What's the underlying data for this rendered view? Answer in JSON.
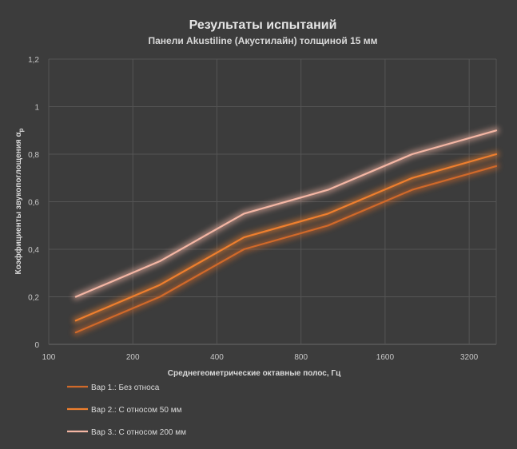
{
  "chart_data": {
    "type": "line",
    "title": "Результаты испытаний",
    "subtitle": "Панели Akustiline (Акустилайн) толщиной 15 мм",
    "xlabel": "Среднегеометрические октавные полос, Гц",
    "ylabel": "Коэффициенты звукопоглощения α",
    "ylabel_sub": "р",
    "x_scale": "log2",
    "x_ticks": [
      100,
      200,
      400,
      800,
      1600,
      3200
    ],
    "xlim": [
      100,
      4000
    ],
    "ylim": [
      0,
      1.2
    ],
    "y_ticks": [
      "0",
      "0,2",
      "0,4",
      "0,6",
      "0,8",
      "1",
      "1,2"
    ],
    "grid": true,
    "legend_position": "bottom-left",
    "x": [
      125,
      250,
      500,
      1000,
      2000,
      4000
    ],
    "series": [
      {
        "name": "Вар 1.: Без относа",
        "color": "#d0692a",
        "values": [
          0.05,
          0.2,
          0.4,
          0.5,
          0.65,
          0.75
        ]
      },
      {
        "name": "Вар 2.: С относом 50 мм",
        "color": "#ee7f2e",
        "values": [
          0.1,
          0.25,
          0.45,
          0.55,
          0.7,
          0.8
        ]
      },
      {
        "name": "Вар 3.: С относом 200 мм",
        "color": "#f4b6a4",
        "values": [
          0.2,
          0.35,
          0.55,
          0.65,
          0.8,
          0.9
        ]
      }
    ]
  }
}
